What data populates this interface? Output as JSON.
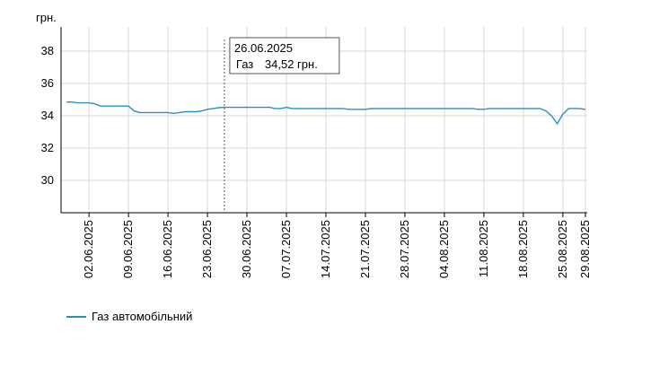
{
  "chart_data": {
    "type": "line",
    "ylabel": "грн.",
    "ylim": [
      28,
      39.5
    ],
    "yticks": [
      30,
      32,
      34,
      36,
      38
    ],
    "grid": true,
    "x_start": "2025-05-29",
    "x_end": "2025-08-29",
    "xtick_labels": [
      "02.06.2025",
      "09.06.2025",
      "16.06.2025",
      "23.06.2025",
      "30.06.2025",
      "07.07.2025",
      "14.07.2025",
      "21.07.2025",
      "28.07.2025",
      "04.08.2025",
      "11.08.2025",
      "18.08.2025",
      "25.08.2025",
      "29.08.2025"
    ],
    "series": [
      {
        "name": "Газ автомобільний",
        "color": "#2a8fc0",
        "x": [
          "2025-05-29",
          "2025-05-30",
          "2025-05-31",
          "2025-06-01",
          "2025-06-02",
          "2025-06-03",
          "2025-06-04",
          "2025-06-05",
          "2025-06-06",
          "2025-06-07",
          "2025-06-08",
          "2025-06-09",
          "2025-06-10",
          "2025-06-11",
          "2025-06-12",
          "2025-06-13",
          "2025-06-14",
          "2025-06-15",
          "2025-06-16",
          "2025-06-17",
          "2025-06-18",
          "2025-06-19",
          "2025-06-20",
          "2025-06-21",
          "2025-06-22",
          "2025-06-23",
          "2025-06-24",
          "2025-06-25",
          "2025-06-26",
          "2025-06-30",
          "2025-07-04",
          "2025-07-05",
          "2025-07-06",
          "2025-07-07",
          "2025-07-08",
          "2025-07-14",
          "2025-07-17",
          "2025-07-18",
          "2025-07-21",
          "2025-07-22",
          "2025-07-28",
          "2025-08-04",
          "2025-08-09",
          "2025-08-10",
          "2025-08-11",
          "2025-08-12",
          "2025-08-13",
          "2025-08-18",
          "2025-08-19",
          "2025-08-21",
          "2025-08-22",
          "2025-08-23",
          "2025-08-24",
          "2025-08-25",
          "2025-08-26",
          "2025-08-28",
          "2025-08-29"
        ],
        "values": [
          34.85,
          34.85,
          34.8,
          34.8,
          34.8,
          34.75,
          34.6,
          34.6,
          34.6,
          34.6,
          34.6,
          34.6,
          34.3,
          34.2,
          34.2,
          34.2,
          34.2,
          34.2,
          34.2,
          34.15,
          34.2,
          34.25,
          34.25,
          34.25,
          34.3,
          34.4,
          34.45,
          34.5,
          34.52,
          34.52,
          34.52,
          34.45,
          34.45,
          34.52,
          34.45,
          34.45,
          34.45,
          34.4,
          34.4,
          34.45,
          34.45,
          34.45,
          34.45,
          34.4,
          34.4,
          34.45,
          34.45,
          34.45,
          34.45,
          34.45,
          34.3,
          34.0,
          33.5,
          34.1,
          34.45,
          34.45,
          34.4
        ]
      }
    ],
    "tooltip": {
      "date": "26.06.2025",
      "series_label": "Газ",
      "value_text": "34,52 грн."
    },
    "legend_position": "bottom-left"
  },
  "legend": {
    "label": "Газ автомобільний",
    "color": "#2a8fc0"
  }
}
